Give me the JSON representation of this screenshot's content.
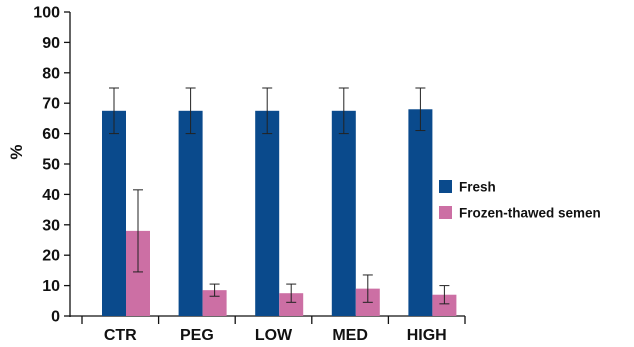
{
  "chart_data": {
    "type": "bar",
    "categories": [
      "CTR",
      "PEG",
      "LOW",
      "MED",
      "HIGH"
    ],
    "series": [
      {
        "name": "Fresh",
        "color": "#0a4a8c",
        "values": [
          67.5,
          67.5,
          67.5,
          67.5,
          68
        ],
        "errors": [
          7.5,
          7.5,
          7.5,
          7.5,
          7.0
        ]
      },
      {
        "name": "Frozen-thawed semen",
        "color": "#cc6fa4",
        "values": [
          28,
          8.5,
          7.5,
          9,
          7
        ],
        "errors": [
          13.5,
          2.0,
          3.0,
          4.5,
          3.0
        ]
      }
    ],
    "ylabel": "%",
    "ylim": [
      0,
      100
    ],
    "yticks": [
      0,
      10,
      20,
      30,
      40,
      50,
      60,
      70,
      80,
      90,
      100
    ],
    "grid": false,
    "legend_position": "right"
  }
}
